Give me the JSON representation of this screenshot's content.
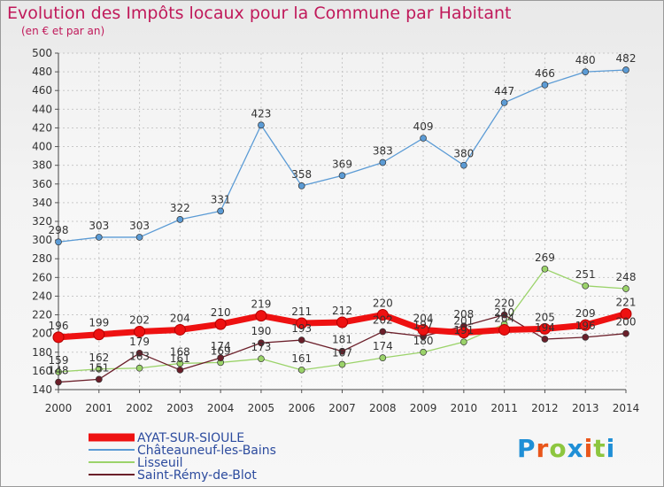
{
  "title": "Evolution des Impôts locaux pour la Commune par Habitant",
  "subtitle": "(en € et par an)",
  "logo": {
    "text": "Proxiti",
    "colors": [
      "#1f8fd6",
      "#e9561b",
      "#8dc63f",
      "#1f8fd6",
      "#e9561b",
      "#8dc63f",
      "#1f8fd6"
    ]
  },
  "chart_data": {
    "type": "line",
    "x": [
      2000,
      2001,
      2002,
      2003,
      2004,
      2005,
      2006,
      2007,
      2008,
      2009,
      2010,
      2011,
      2012,
      2013,
      2014
    ],
    "ylim": [
      140,
      500
    ],
    "yticks": [
      140,
      160,
      180,
      200,
      220,
      240,
      260,
      280,
      300,
      320,
      340,
      360,
      380,
      400,
      420,
      440,
      460,
      480,
      500
    ],
    "grid": true,
    "legend": "bottom-left",
    "series": [
      {
        "name": "Châteauneuf-les-Bains",
        "color": "#5b9bd5",
        "values": [
          298,
          303,
          303,
          322,
          331,
          423,
          358,
          369,
          383,
          409,
          380,
          447,
          466,
          480,
          482
        ]
      },
      {
        "name": "Lisseuil",
        "color": "#9bd36a",
        "values": [
          159,
          162,
          163,
          168,
          169,
          173,
          161,
          167,
          174,
          180,
          191,
          210,
          269,
          251,
          248
        ]
      },
      {
        "name": "Saint-Rémy-de-Blot",
        "color": "#6b1f2a",
        "values": [
          148,
          151,
          179,
          161,
          174,
          190,
          193,
          181,
          202,
          197,
          208,
          220,
          194,
          196,
          200
        ]
      },
      {
        "name": "AYAT-SUR-SIOULE",
        "color": "#ee1111",
        "values": [
          196,
          199,
          202,
          204,
          210,
          219,
          211,
          212,
          220,
          204,
          201,
          204,
          205,
          209,
          221
        ]
      }
    ]
  }
}
